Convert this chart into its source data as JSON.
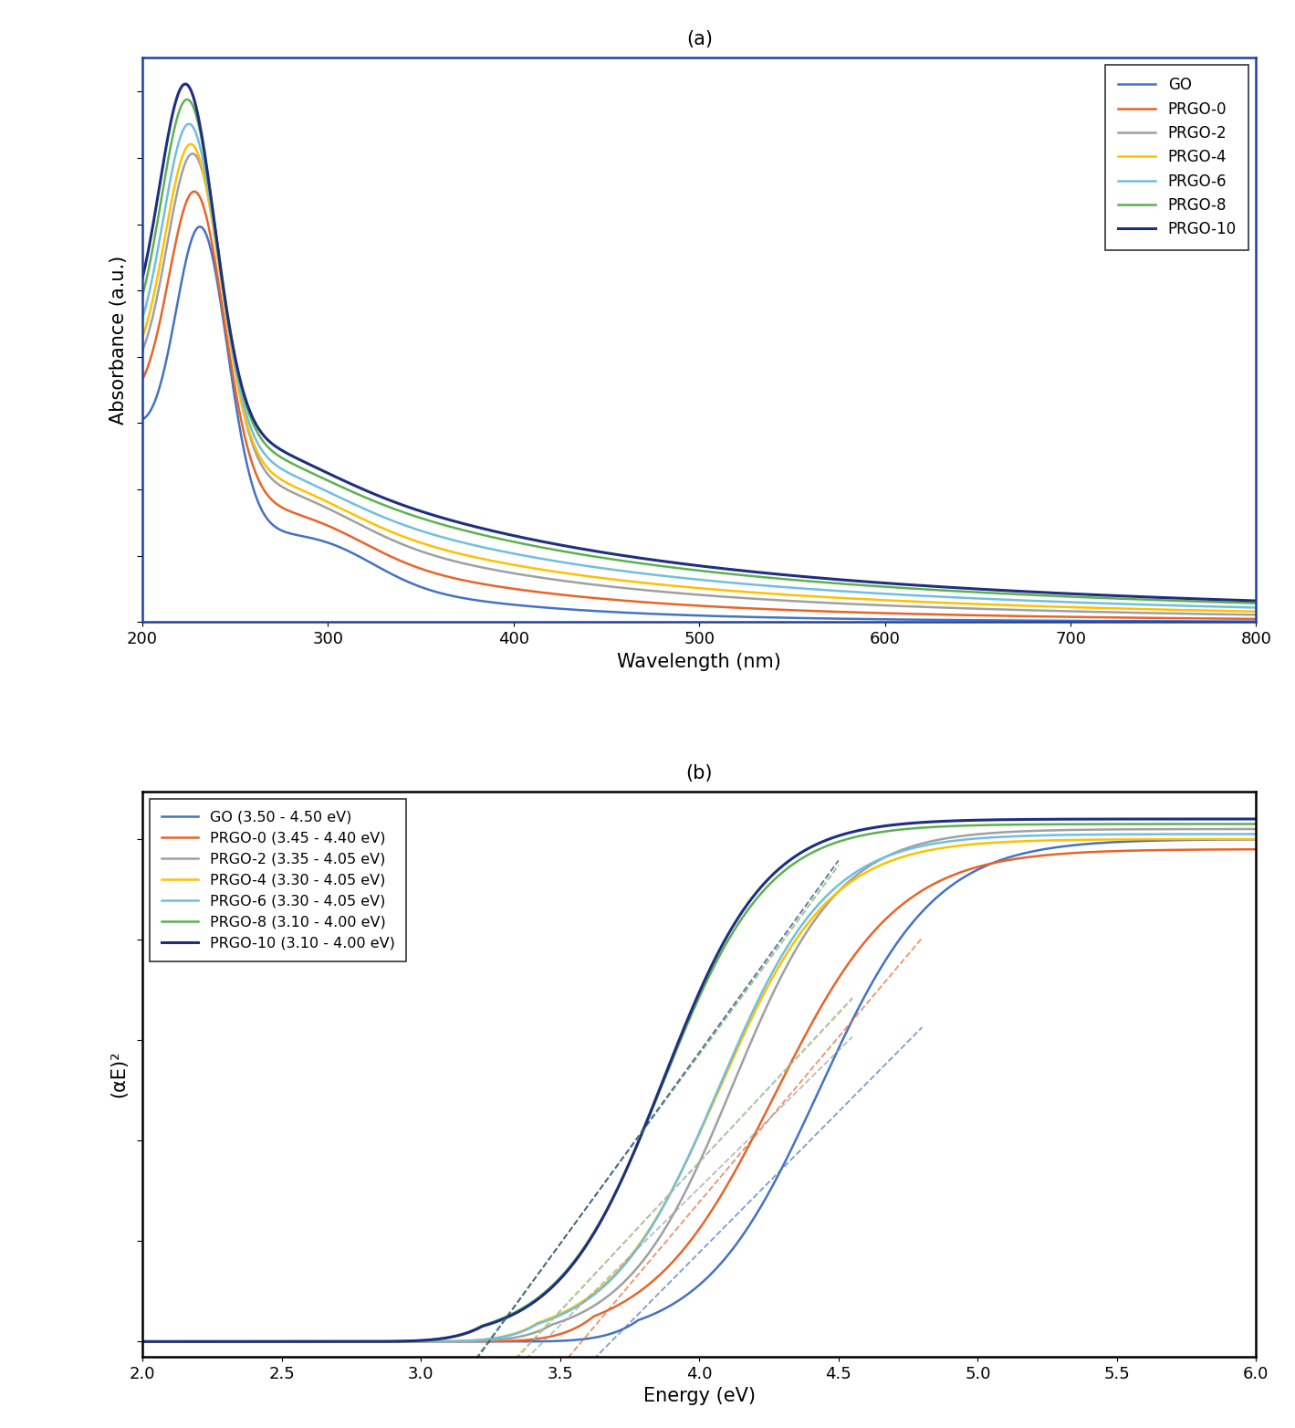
{
  "panel_a": {
    "title": "(a)",
    "xlabel": "Wavelength (nm)",
    "ylabel": "Absorbance (a.u.)",
    "xlim": [
      200,
      800
    ],
    "series": [
      {
        "label": "GO",
        "color": "#4472C4",
        "lw": 1.8
      },
      {
        "label": "PRGO-0",
        "color": "#E8642A",
        "lw": 1.8
      },
      {
        "label": "PRGO-2",
        "color": "#A0A0A0",
        "lw": 1.8
      },
      {
        "label": "PRGO-4",
        "color": "#FFC000",
        "lw": 1.8
      },
      {
        "label": "PRGO-6",
        "color": "#70BEE0",
        "lw": 1.8
      },
      {
        "label": "PRGO-8",
        "color": "#5DB050",
        "lw": 1.8
      },
      {
        "label": "PRGO-10",
        "color": "#1F2F80",
        "lw": 2.2
      }
    ]
  },
  "panel_b": {
    "title": "(b)",
    "xlabel": "Energy (eV)",
    "ylabel": "(αE)²",
    "xlim": [
      2.0,
      6.0
    ],
    "series": [
      {
        "label": "GO (3.50 - 4.50 eV)",
        "color": "#4472C4",
        "lw": 1.8,
        "tline_range": [
          3.5,
          4.5
        ],
        "Eg": 3.88
      },
      {
        "label": "PRGO-0 (3.45 - 4.40 eV)",
        "color": "#E8642A",
        "lw": 1.8,
        "tline_range": [
          3.45,
          4.4
        ],
        "Eg": 3.72
      },
      {
        "label": "PRGO-2 (3.35 - 4.05 eV)",
        "color": "#A0A0A0",
        "lw": 1.8,
        "tline_range": [
          3.35,
          4.05
        ],
        "Eg": 3.57
      },
      {
        "label": "PRGO-4 (3.30 - 4.05 eV)",
        "color": "#FFC000",
        "lw": 1.8,
        "tline_range": [
          3.3,
          4.05
        ],
        "Eg": 3.52
      },
      {
        "label": "PRGO-6 (3.30 - 4.05 eV)",
        "color": "#70BEE0",
        "lw": 1.8,
        "tline_range": [
          3.3,
          4.05
        ],
        "Eg": 3.52
      },
      {
        "label": "PRGO-8 (3.10 - 4.00 eV)",
        "color": "#5DB050",
        "lw": 1.8,
        "tline_range": [
          3.1,
          4.0
        ],
        "Eg": 3.32
      },
      {
        "label": "PRGO-10 (3.10 - 4.00 eV)",
        "color": "#1F2F80",
        "lw": 2.2,
        "tline_range": [
          3.1,
          4.0
        ],
        "Eg": 3.32
      }
    ]
  },
  "background_color": "#FFFFFF",
  "figure_size": [
    14.19,
    15.64
  ],
  "dpi": 100
}
